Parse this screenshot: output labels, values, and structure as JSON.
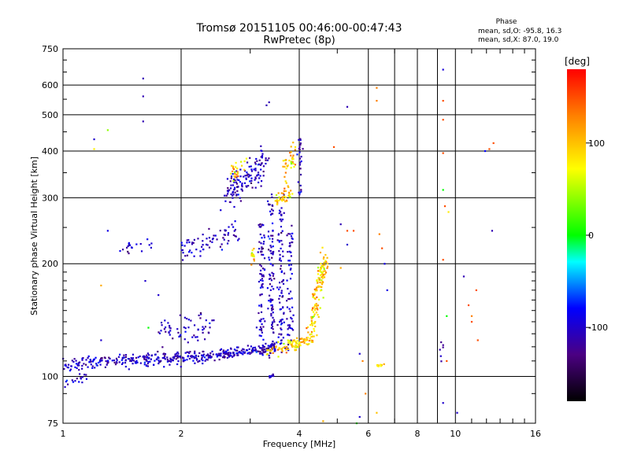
{
  "chart_data": {
    "type": "scatter",
    "title": "Tromsø 20151105 00:46:00-00:47:43",
    "subtitle": "RwPretec (8p)",
    "xlabel": "Frequency [MHz]",
    "ylabel": "Stationary phase Virtual Height [km]",
    "x_scale": "log2",
    "y_scale": "log",
    "xlim": [
      1,
      16
    ],
    "ylim": [
      75,
      750
    ],
    "x_ticks": [
      1,
      2,
      4,
      6,
      8,
      10,
      16
    ],
    "y_ticks": [
      75,
      100,
      200,
      300,
      400,
      500,
      600,
      750
    ],
    "grid": true,
    "colorbar": {
      "label": "[deg]",
      "range": [
        -180,
        180
      ],
      "ticks": [
        100,
        0,
        -100
      ]
    },
    "phase_header": "Phase",
    "phase_stats": [
      "mean, sd,O: -95.8, 16.3",
      "mean, sd,X:  87.0, 19.0"
    ],
    "series": [
      {
        "traces": [
          {
            "x0": 1.0,
            "x1": 2.3,
            "h0": 108,
            "h1": 113,
            "jitter": 0.02,
            "n": 260
          },
          {
            "x0": 2.3,
            "x1": 3.5,
            "h0": 113,
            "h1": 120,
            "jitter": 0.015,
            "n": 170
          },
          {
            "x0": 1.7,
            "x1": 2.4,
            "h0": 128,
            "h1": 138,
            "jitter": 0.04,
            "n": 60
          },
          {
            "x0": 2.0,
            "x1": 2.8,
            "h0": 218,
            "h1": 245,
            "jitter": 0.035,
            "n": 70
          },
          {
            "x0": 1.4,
            "x1": 1.7,
            "h0": 220,
            "h1": 225,
            "jitter": 0.02,
            "n": 20
          },
          {
            "x0": 2.6,
            "x1": 3.3,
            "h0": 305,
            "h1": 375,
            "jitter": 0.05,
            "n": 130
          },
          {
            "x0": 3.17,
            "x1": 3.23,
            "h0": 115,
            "h1": 260,
            "jitter": 0.03,
            "n": 80
          },
          {
            "x0": 3.37,
            "x1": 3.43,
            "h0": 115,
            "h1": 300,
            "jitter": 0.03,
            "n": 95
          },
          {
            "x0": 3.57,
            "x1": 3.63,
            "h0": 118,
            "h1": 290,
            "jitter": 0.03,
            "n": 80
          },
          {
            "x0": 3.76,
            "x1": 3.82,
            "h0": 118,
            "h1": 250,
            "jitter": 0.03,
            "n": 60
          },
          {
            "x0": 4.0,
            "x1": 4.05,
            "h0": 300,
            "h1": 450,
            "jitter": 0.02,
            "n": 25
          },
          {
            "x0": 0.97,
            "x1": 1.15,
            "h0": 95,
            "h1": 100,
            "jitter": 0.02,
            "n": 20
          },
          {
            "x0": 3.35,
            "x1": 3.45,
            "h0": 100,
            "h1": 101,
            "jitter": 0.005,
            "n": 8
          },
          {
            "x0": 9.2,
            "x1": 9.25,
            "h0": 112,
            "h1": 120,
            "jitter": 0.03,
            "n": 6
          }
        ],
        "phase_center": -105,
        "phase_spread": 16
      },
      {
        "traces": [
          {
            "x0": 3.3,
            "x1": 4.4,
            "h0": 115,
            "h1": 128,
            "jitter": 0.02,
            "n": 90
          },
          {
            "x0": 4.25,
            "x1": 4.65,
            "h0": 130,
            "h1": 210,
            "jitter": 0.04,
            "n": 130
          },
          {
            "x0": 2.7,
            "x1": 2.9,
            "h0": 345,
            "h1": 365,
            "jitter": 0.03,
            "n": 25
          },
          {
            "x0": 3.5,
            "x1": 3.8,
            "h0": 295,
            "h1": 310,
            "jitter": 0.02,
            "n": 40
          },
          {
            "x0": 3.65,
            "x1": 3.9,
            "h0": 350,
            "h1": 400,
            "jitter": 0.04,
            "n": 40
          },
          {
            "x0": 3.0,
            "x1": 3.1,
            "h0": 200,
            "h1": 220,
            "jitter": 0.03,
            "n": 15
          },
          {
            "x0": 6.3,
            "x1": 6.6,
            "h0": 107,
            "h1": 108,
            "jitter": 0.005,
            "n": 10
          }
        ],
        "phase_center": 95,
        "phase_spread": 25
      }
    ],
    "scattered_points": [
      [
        1.6,
        625,
        -110
      ],
      [
        1.6,
        560,
        -110
      ],
      [
        1.6,
        480,
        -110
      ],
      [
        1.3,
        455,
        40
      ],
      [
        1.2,
        430,
        -100
      ],
      [
        1.2,
        405,
        80
      ],
      [
        1.3,
        245,
        -90
      ],
      [
        1.25,
        175,
        110
      ],
      [
        1.25,
        125,
        -100
      ],
      [
        1.62,
        180,
        -100
      ],
      [
        1.65,
        135,
        0
      ],
      [
        1.75,
        165,
        -100
      ],
      [
        3.35,
        540,
        -110
      ],
      [
        3.3,
        530,
        -110
      ],
      [
        5.3,
        525,
        -110
      ],
      [
        6.3,
        590,
        130
      ],
      [
        6.3,
        545,
        130
      ],
      [
        4.9,
        410,
        150
      ],
      [
        5.1,
        255,
        -110
      ],
      [
        5.3,
        245,
        150
      ],
      [
        5.5,
        245,
        150
      ],
      [
        5.1,
        195,
        110
      ],
      [
        5.3,
        225,
        -100
      ],
      [
        6.4,
        240,
        130
      ],
      [
        6.5,
        220,
        150
      ],
      [
        6.6,
        200,
        -90
      ],
      [
        6.7,
        170,
        -90
      ],
      [
        5.7,
        115,
        -100
      ],
      [
        5.8,
        110,
        130
      ],
      [
        5.9,
        90,
        130
      ],
      [
        6.3,
        80,
        100
      ],
      [
        5.7,
        78,
        -100
      ],
      [
        4.6,
        76,
        110
      ],
      [
        5.6,
        75,
        10
      ],
      [
        9.3,
        660,
        -95
      ],
      [
        9.3,
        545,
        150
      ],
      [
        9.3,
        485,
        150
      ],
      [
        9.3,
        395,
        150
      ],
      [
        9.3,
        315,
        0
      ],
      [
        9.4,
        285,
        150
      ],
      [
        9.6,
        275,
        80
      ],
      [
        9.3,
        205,
        150
      ],
      [
        9.5,
        145,
        0
      ],
      [
        9.5,
        110,
        150
      ],
      [
        9.3,
        85,
        -100
      ],
      [
        10.1,
        80,
        -100
      ],
      [
        10.5,
        185,
        -110
      ],
      [
        11.0,
        145,
        130
      ],
      [
        11.3,
        170,
        150
      ],
      [
        12.2,
        405,
        150
      ],
      [
        11.9,
        400,
        -80
      ],
      [
        12.5,
        420,
        150
      ],
      [
        12.4,
        245,
        -110
      ],
      [
        11.0,
        140,
        150
      ],
      [
        11.4,
        125,
        150
      ],
      [
        10.8,
        155,
        150
      ]
    ]
  }
}
